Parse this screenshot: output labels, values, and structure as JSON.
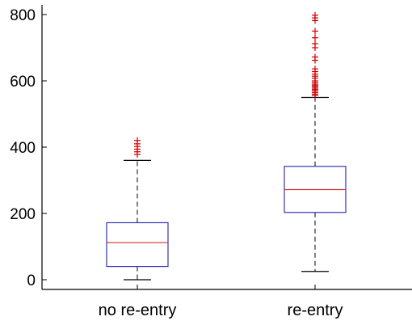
{
  "chart_data": {
    "type": "box",
    "title": "",
    "xlabel": "",
    "ylabel": "",
    "ylim": [
      -30,
      820
    ],
    "y_ticks": [
      0,
      200,
      400,
      600,
      800
    ],
    "y_tick_labels": [
      "0",
      "200",
      "400",
      "600",
      "800"
    ],
    "grid": false,
    "categories": [
      "no re-entry",
      "re-entry"
    ],
    "boxes": [
      {
        "category": "no re-entry",
        "whisker_low": 0,
        "q1": 40,
        "median": 112,
        "q3": 172,
        "whisker_high": 360,
        "outliers": [
          378,
          386,
          394,
          402,
          410,
          420
        ]
      },
      {
        "category": "re-entry",
        "whisker_low": 25,
        "q1": 203,
        "median": 272,
        "q3": 342,
        "whisker_high": 550,
        "outliers": [
          556,
          560,
          565,
          570,
          574,
          578,
          582,
          586,
          590,
          595,
          600,
          608,
          614,
          620,
          628,
          636,
          662,
          672,
          700,
          712,
          730,
          750,
          782,
          790,
          798
        ]
      }
    ],
    "colors": {
      "box": "#3333bb",
      "median": "#cc3333",
      "whisker": "#000000",
      "outlier": "#cc0000",
      "axis": "#000000"
    }
  }
}
